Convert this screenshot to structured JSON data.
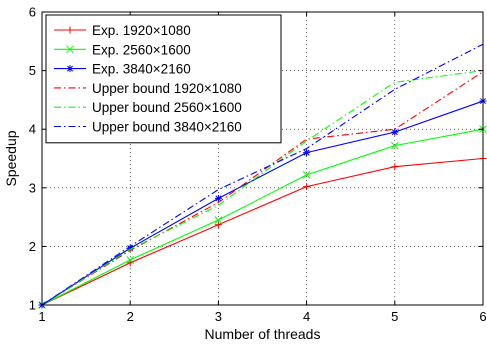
{
  "chart_data": {
    "type": "line",
    "title": "",
    "xlabel": "Number of threads",
    "ylabel": "Speedup",
    "x": [
      1,
      2,
      3,
      4,
      5,
      6
    ],
    "xlim": [
      1,
      6
    ],
    "ylim": [
      1,
      6
    ],
    "xticks": [
      "1",
      "2",
      "3",
      "4",
      "5",
      "6"
    ],
    "yticks": [
      "1",
      "2",
      "3",
      "4",
      "5",
      "6"
    ],
    "grid": true,
    "legend_position": "top-left",
    "series": [
      {
        "name": "Exp. 1920×1080",
        "values": [
          1.0,
          1.72,
          2.37,
          3.02,
          3.36,
          3.5
        ],
        "color": "#ff0000",
        "style": "solid",
        "marker": "+"
      },
      {
        "name": "Exp. 2560×1600",
        "values": [
          1.0,
          1.77,
          2.45,
          3.22,
          3.72,
          4.0
        ],
        "color": "#00ff00",
        "style": "solid",
        "marker": "x"
      },
      {
        "name": "Exp. 3840×2160",
        "values": [
          1.0,
          1.97,
          2.82,
          3.6,
          3.95,
          4.48
        ],
        "color": "#0000ff",
        "style": "solid",
        "marker": "*"
      },
      {
        "name": "Upper bound 1920×1080",
        "values": [
          1.0,
          1.93,
          2.75,
          3.83,
          4.0,
          4.98
        ],
        "color": "#ff0000",
        "style": "dashdot",
        "marker": ""
      },
      {
        "name": "Upper bound 2560×1600",
        "values": [
          1.0,
          1.95,
          2.7,
          3.8,
          4.8,
          5.0
        ],
        "color": "#00ff00",
        "style": "dashdot",
        "marker": ""
      },
      {
        "name": "Upper bound 3840×2160",
        "values": [
          1.0,
          2.0,
          2.97,
          3.67,
          4.68,
          5.45
        ],
        "color": "#0000ff",
        "style": "dashdot",
        "marker": ""
      }
    ]
  }
}
